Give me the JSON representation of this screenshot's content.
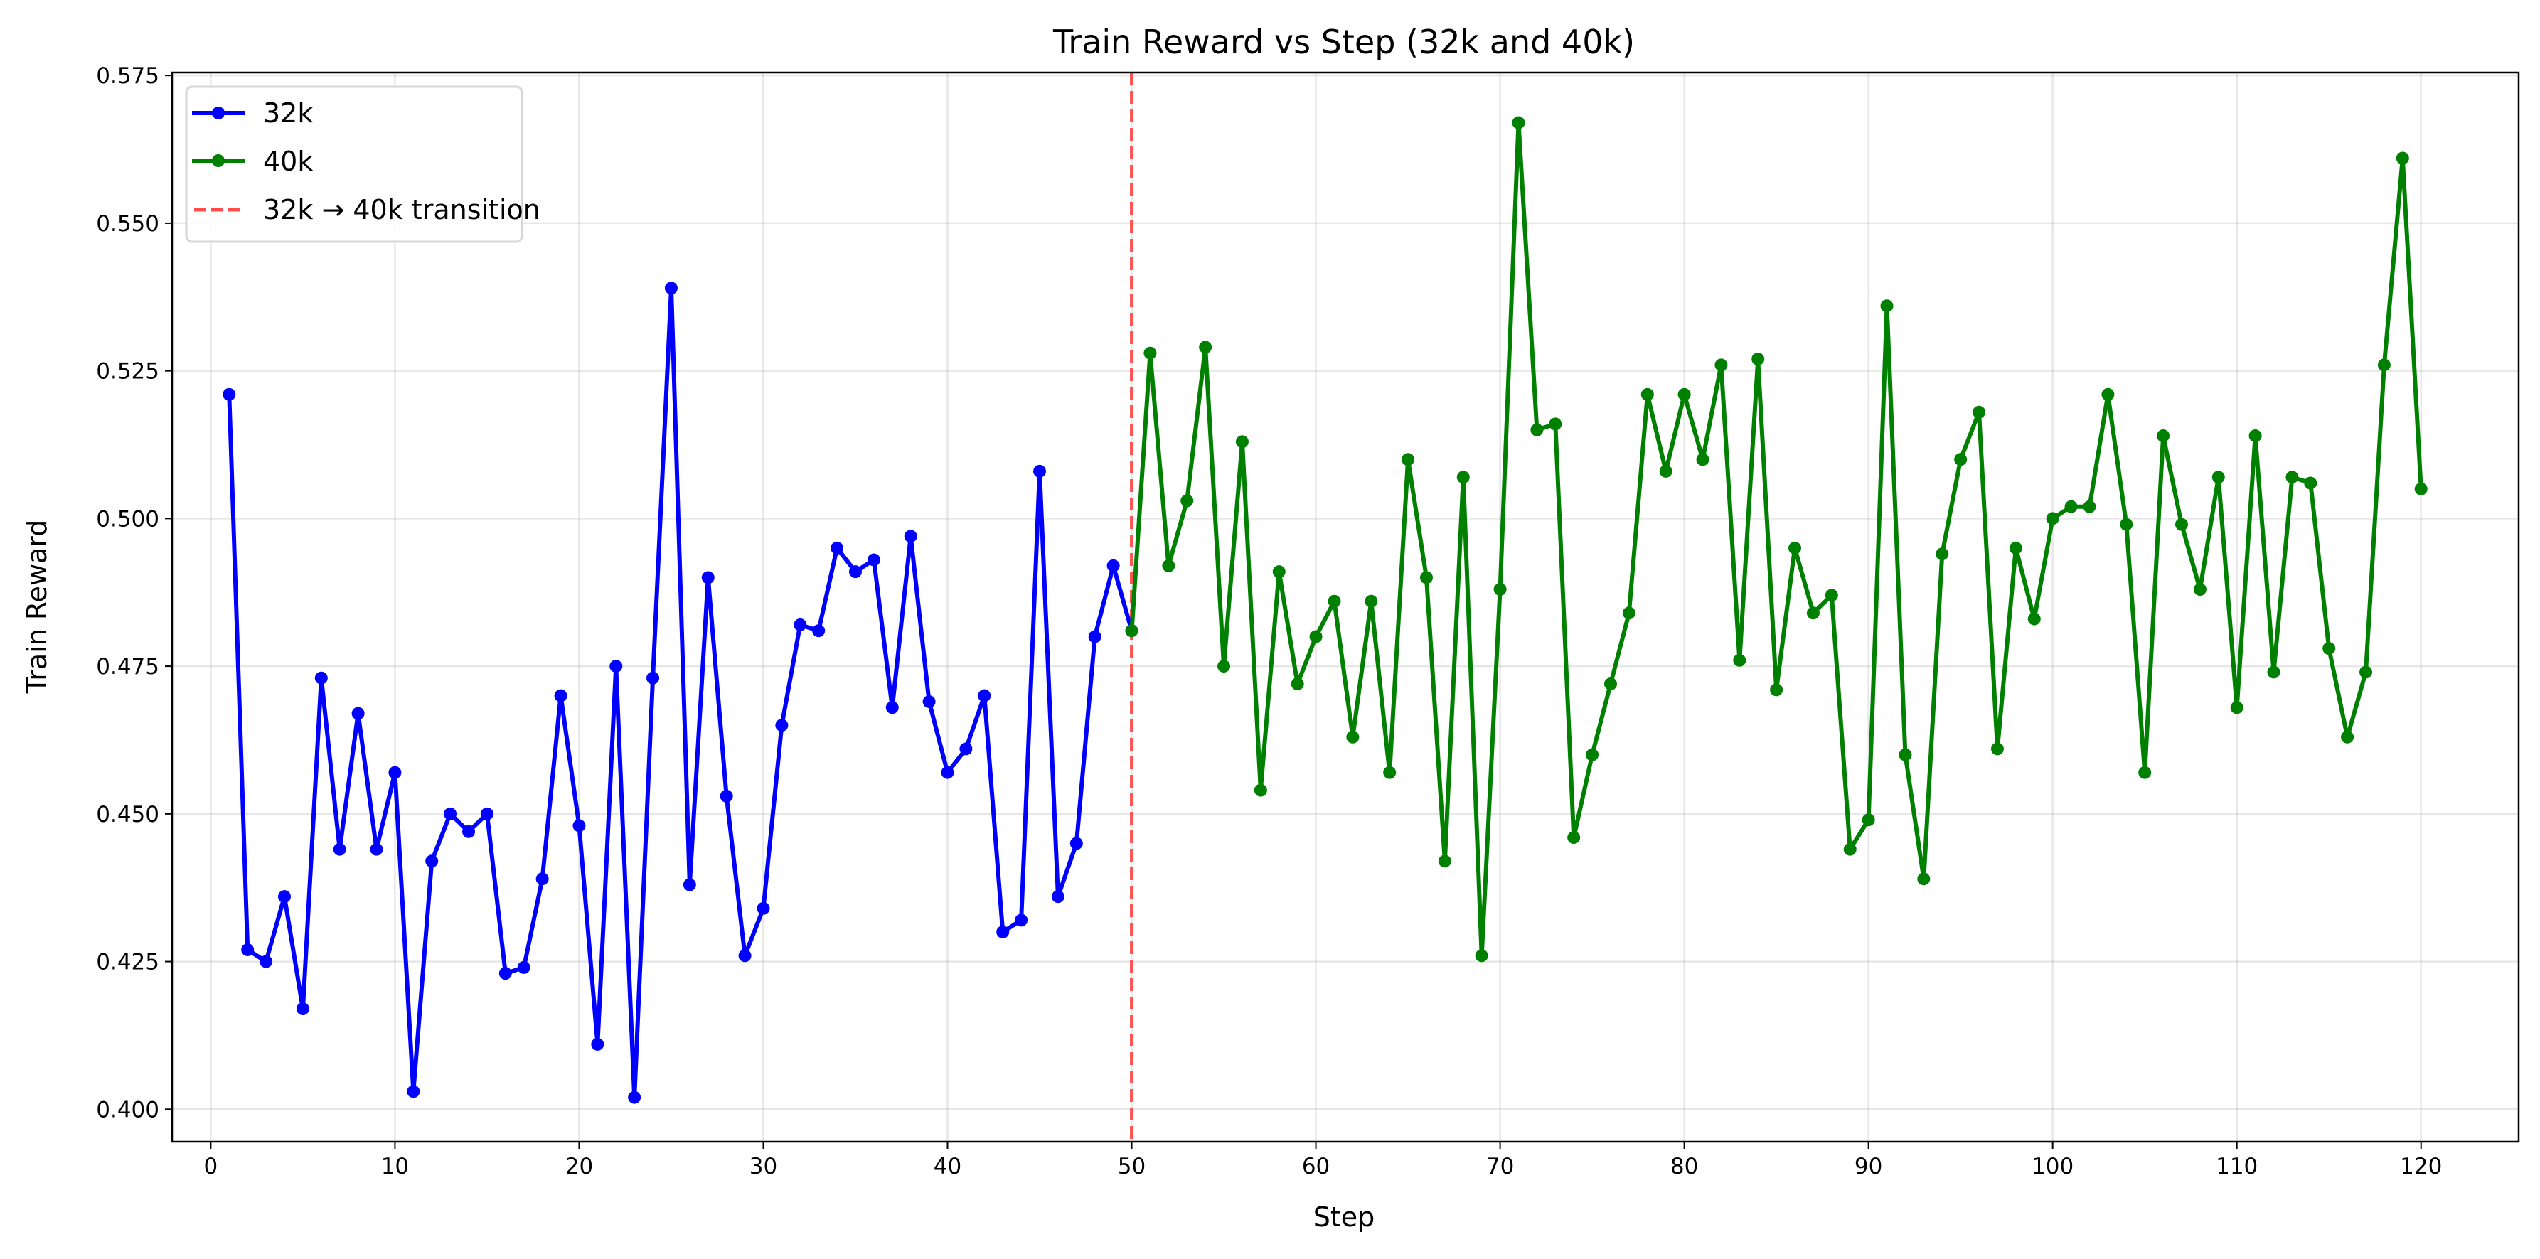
{
  "chart_data": {
    "type": "line",
    "title": "Train Reward vs Step (32k and 40k)",
    "xlabel": "Step",
    "ylabel": "Train Reward",
    "xlim": [
      -2.1,
      125.3
    ],
    "ylim": [
      0.3945,
      0.5755
    ],
    "xticks": [
      0,
      10,
      20,
      30,
      40,
      50,
      60,
      70,
      80,
      90,
      100,
      110,
      120
    ],
    "yticks": [
      "0.400",
      "0.425",
      "0.450",
      "0.475",
      "0.500",
      "0.525",
      "0.550",
      "0.575"
    ],
    "grid": true,
    "legend_position": "top-left",
    "series": [
      {
        "name": "32k",
        "color": "#0000ff",
        "x": [
          1,
          2,
          3,
          4,
          5,
          6,
          7,
          8,
          9,
          10,
          11,
          12,
          13,
          14,
          15,
          16,
          17,
          18,
          19,
          20,
          21,
          22,
          23,
          24,
          25,
          26,
          27,
          28,
          29,
          30,
          31,
          32,
          33,
          34,
          35,
          36,
          37,
          38,
          39,
          40,
          41,
          42,
          43,
          44,
          45,
          46,
          47,
          48,
          49,
          50
        ],
        "y": [
          0.521,
          0.427,
          0.425,
          0.436,
          0.417,
          0.473,
          0.444,
          0.467,
          0.444,
          0.457,
          0.403,
          0.442,
          0.45,
          0.447,
          0.45,
          0.423,
          0.424,
          0.439,
          0.47,
          0.448,
          0.411,
          0.475,
          0.402,
          0.473,
          0.539,
          0.438,
          0.49,
          0.453,
          0.426,
          0.434,
          0.465,
          0.482,
          0.481,
          0.495,
          0.491,
          0.493,
          0.468,
          0.497,
          0.469,
          0.457,
          0.461,
          0.47,
          0.43,
          0.432,
          0.508,
          0.436,
          0.445,
          0.48,
          0.492,
          0.481
        ]
      },
      {
        "name": "40k",
        "color": "#008000",
        "x": [
          50,
          51,
          52,
          53,
          54,
          55,
          56,
          57,
          58,
          59,
          60,
          61,
          62,
          63,
          64,
          65,
          66,
          67,
          68,
          69,
          70,
          71,
          72,
          73,
          74,
          75,
          76,
          77,
          78,
          79,
          80,
          81,
          82,
          83,
          84,
          85,
          86,
          87,
          88,
          89,
          90,
          91,
          92,
          93,
          94,
          95,
          96,
          97,
          98,
          99,
          100,
          101,
          102,
          103,
          104,
          105,
          106,
          107,
          108,
          109,
          110,
          111,
          112,
          113,
          114,
          115,
          116,
          117,
          118,
          119,
          120
        ],
        "y": [
          0.481,
          0.528,
          0.492,
          0.503,
          0.529,
          0.475,
          0.513,
          0.454,
          0.491,
          0.472,
          0.48,
          0.486,
          0.463,
          0.486,
          0.457,
          0.51,
          0.49,
          0.442,
          0.507,
          0.426,
          0.488,
          0.567,
          0.515,
          0.516,
          0.446,
          0.46,
          0.472,
          0.484,
          0.521,
          0.508,
          0.521,
          0.51,
          0.526,
          0.476,
          0.527,
          0.471,
          0.495,
          0.484,
          0.487,
          0.444,
          0.449,
          0.536,
          0.46,
          0.439,
          0.494,
          0.51,
          0.518,
          0.461,
          0.495,
          0.483,
          0.5,
          0.502,
          0.502,
          0.521,
          0.499,
          0.457,
          0.514,
          0.499,
          0.488,
          0.507,
          0.468,
          0.514,
          0.474,
          0.507,
          0.506,
          0.478,
          0.463,
          0.474,
          0.526,
          0.561,
          0.505
        ]
      }
    ],
    "annotations": [
      {
        "type": "vline",
        "x": 50,
        "name": "32k → 40k transition",
        "color": "#ff4d4d",
        "style": "dashed"
      }
    ]
  }
}
